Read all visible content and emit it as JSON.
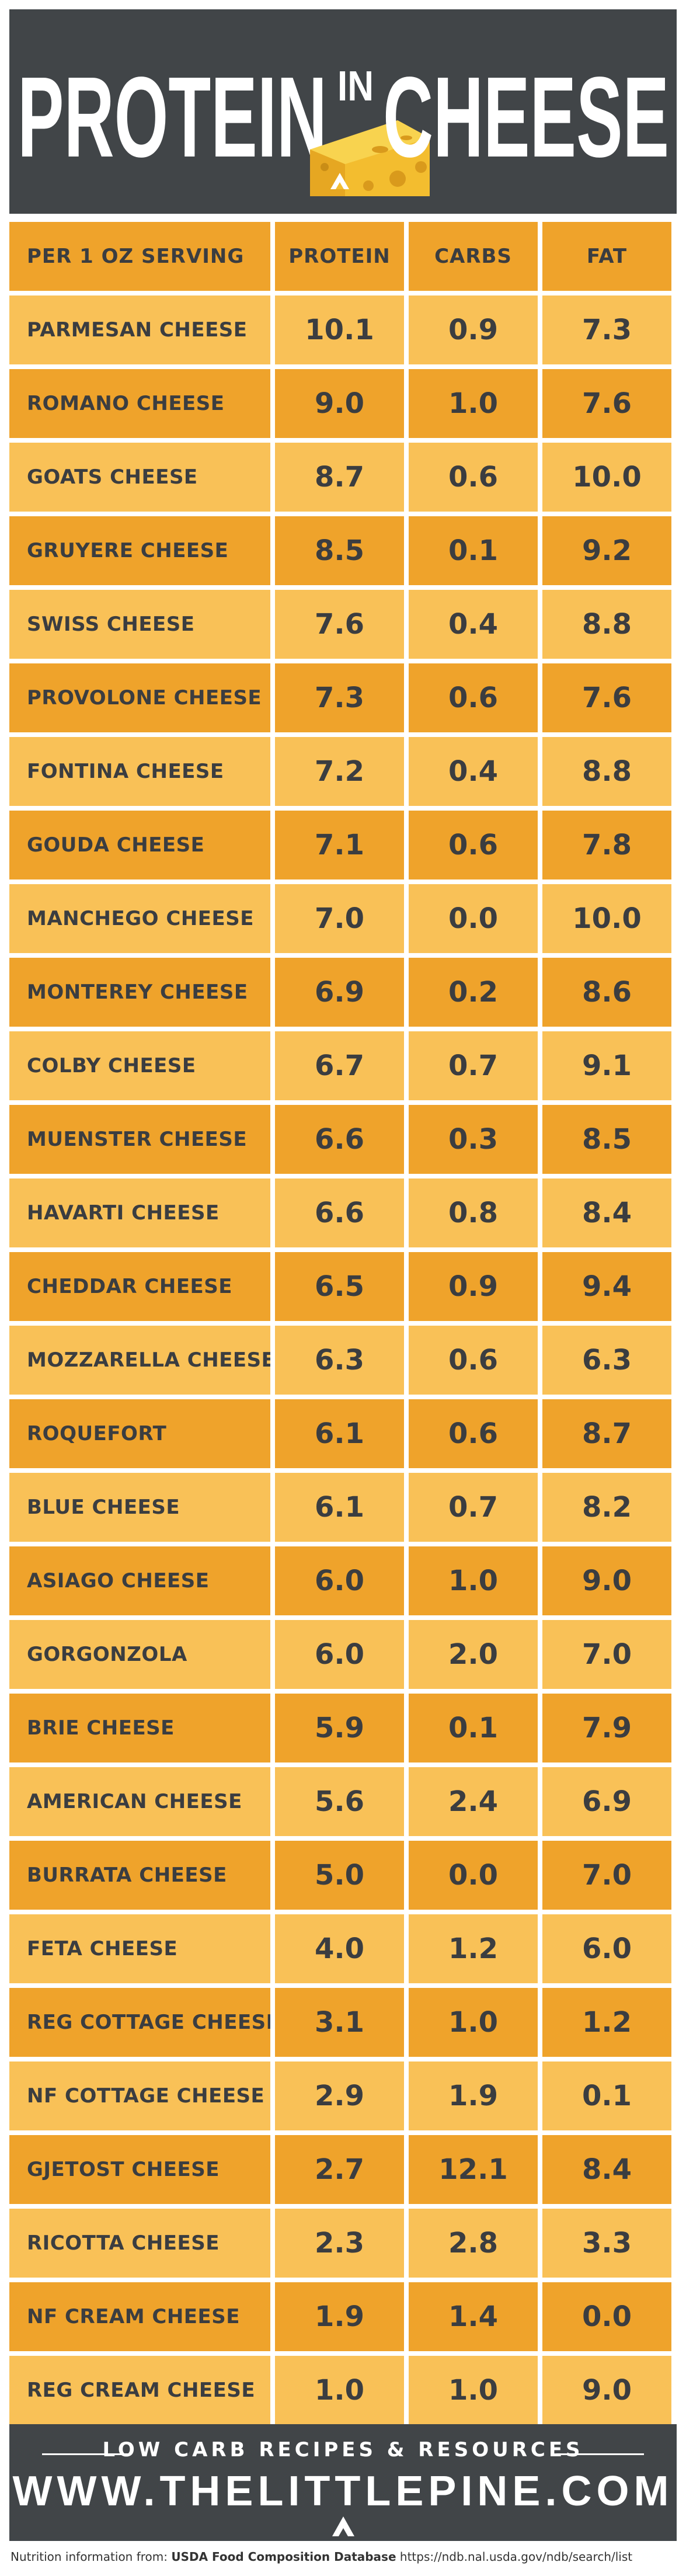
{
  "header": {
    "title_left": "PROTEIN",
    "title_mid": "IN",
    "title_right": "CHEESE"
  },
  "colors": {
    "header_bg": "#414548",
    "row_dark": "#efa32b",
    "row_light": "#f9c157",
    "text": "#3b3d40"
  },
  "icons": [
    "cheese-wedge-icon",
    "pine-tree-logo-icon"
  ],
  "chart_data": {
    "type": "table",
    "columns": [
      "PER 1 OZ SERVING",
      "PROTEIN",
      "CARBS",
      "FAT"
    ],
    "rows": [
      [
        "PARMESAN CHEESE",
        "10.1",
        "0.9",
        "7.3"
      ],
      [
        "ROMANO CHEESE",
        "9.0",
        "1.0",
        "7.6"
      ],
      [
        "GOATS CHEESE",
        "8.7",
        "0.6",
        "10.0"
      ],
      [
        "GRUYERE CHEESE",
        "8.5",
        "0.1",
        "9.2"
      ],
      [
        "SWISS CHEESE",
        "7.6",
        "0.4",
        "8.8"
      ],
      [
        "PROVOLONE CHEESE",
        "7.3",
        "0.6",
        "7.6"
      ],
      [
        "FONTINA CHEESE",
        "7.2",
        "0.4",
        "8.8"
      ],
      [
        "GOUDA CHEESE",
        "7.1",
        "0.6",
        "7.8"
      ],
      [
        "MANCHEGO CHEESE",
        "7.0",
        "0.0",
        "10.0"
      ],
      [
        "MONTEREY CHEESE",
        "6.9",
        "0.2",
        "8.6"
      ],
      [
        "COLBY CHEESE",
        "6.7",
        "0.7",
        "9.1"
      ],
      [
        "MUENSTER CHEESE",
        "6.6",
        "0.3",
        "8.5"
      ],
      [
        "HAVARTI CHEESE",
        "6.6",
        "0.8",
        "8.4"
      ],
      [
        "CHEDDAR CHEESE",
        "6.5",
        "0.9",
        "9.4"
      ],
      [
        "MOZZARELLA CHEESE",
        "6.3",
        "0.6",
        "6.3"
      ],
      [
        "ROQUEFORT",
        "6.1",
        "0.6",
        "8.7"
      ],
      [
        "BLUE CHEESE",
        "6.1",
        "0.7",
        "8.2"
      ],
      [
        "ASIAGO CHEESE",
        "6.0",
        "1.0",
        "9.0"
      ],
      [
        "GORGONZOLA",
        "6.0",
        "2.0",
        "7.0"
      ],
      [
        "BRIE CHEESE",
        "5.9",
        "0.1",
        "7.9"
      ],
      [
        "AMERICAN CHEESE",
        "5.6",
        "2.4",
        "6.9"
      ],
      [
        "BURRATA CHEESE",
        "5.0",
        "0.0",
        "7.0"
      ],
      [
        "FETA CHEESE",
        "4.0",
        "1.2",
        "6.0"
      ],
      [
        "REG COTTAGE CHEESE",
        "3.1",
        "1.0",
        "1.2"
      ],
      [
        "NF COTTAGE CHEESE",
        "2.9",
        "1.9",
        "0.1"
      ],
      [
        "GJETOST CHEESE",
        "2.7",
        "12.1",
        "8.4"
      ],
      [
        "RICOTTA CHEESE",
        "2.3",
        "2.8",
        "3.3"
      ],
      [
        "NF CREAM CHEESE",
        "1.9",
        "1.4",
        "0.0"
      ],
      [
        "REG CREAM CHEESE",
        "1.0",
        "1.0",
        "9.0"
      ]
    ]
  },
  "footer": {
    "subtitle": "LOW CARB RECIPES & RESOURCES",
    "url": "WWW.THELITTLEPINE.COM"
  },
  "source": {
    "prefix": "Nutrition information from: ",
    "database": "USDA Food Composition Database",
    "link": " https://ndb.nal.usda.gov/ndb/search/list"
  }
}
